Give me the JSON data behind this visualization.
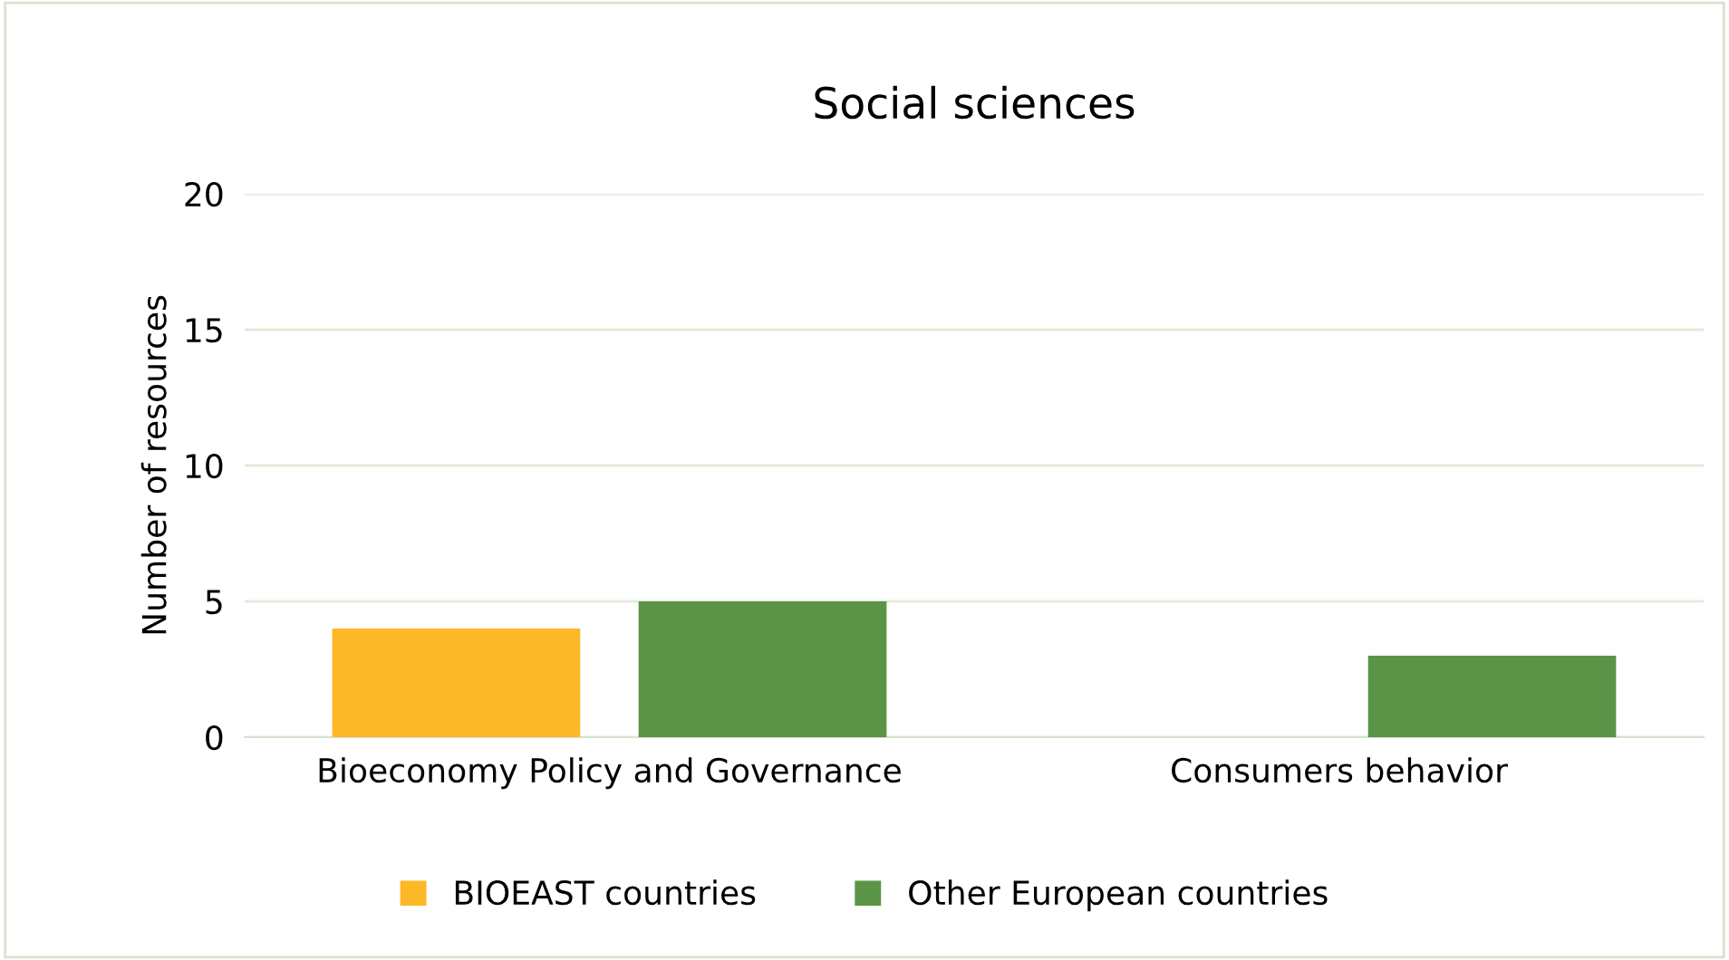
{
  "chart_data": {
    "type": "bar",
    "title": "Social sciences",
    "ylabel": "Number of resources",
    "categories": [
      "Bioeconomy Policy and Governance",
      "Consumers behavior"
    ],
    "series": [
      {
        "name": "BIOEAST countries",
        "color": "#fdb827",
        "values": [
          4,
          0
        ]
      },
      {
        "name": "Other European countries",
        "color": "#5b9447",
        "values": [
          5,
          3
        ]
      }
    ],
    "ylim": [
      0,
      20
    ],
    "yticks": [
      0,
      5,
      10,
      15,
      20
    ],
    "grid": "y",
    "legend": "bottom"
  }
}
